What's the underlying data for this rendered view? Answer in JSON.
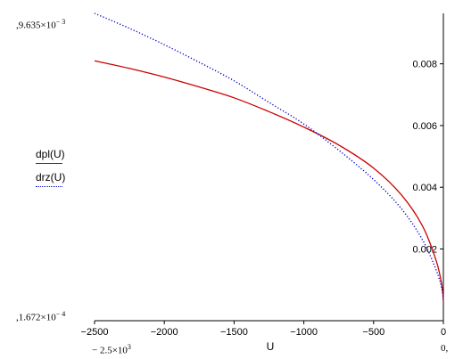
{
  "chart_data": {
    "type": "line",
    "xlabel": "U",
    "ylabel": "",
    "title": "",
    "xlim": [
      -2500,
      0
    ],
    "ylim": [
      0.0001672,
      0.009635
    ],
    "x_ticks": [
      -2500,
      -2000,
      -1500,
      -1000,
      -500,
      0
    ],
    "x_tick_labels": [
      "−2500",
      "−2000",
      "−1500",
      "−1000",
      "−500",
      "0"
    ],
    "y_ticks": [
      0.002,
      0.004,
      0.006,
      0.008
    ],
    "y_tick_labels": [
      "0.002",
      "0.004",
      "0.006",
      "0.008"
    ],
    "grid": false,
    "legend_position": "left-middle",
    "x": [
      -2500,
      -2250,
      -2000,
      -1750,
      -1500,
      -1250,
      -1000,
      -750,
      -500,
      -300,
      -150,
      -50,
      -10,
      0
    ],
    "series": [
      {
        "name": "dpl(U)",
        "color": "#cc0000",
        "style": "solid",
        "values": [
          0.0081,
          0.00785,
          0.00757,
          0.00725,
          0.0069,
          0.00645,
          0.00595,
          0.00537,
          0.00462,
          0.00375,
          0.00275,
          0.0016,
          0.0008,
          0.0003
        ]
      },
      {
        "name": "drz(U)",
        "color": "#0000cc",
        "style": "dotted",
        "values": [
          0.009635,
          0.00915,
          0.00862,
          0.00805,
          0.00745,
          0.00675,
          0.00605,
          0.0052,
          0.00425,
          0.0033,
          0.0023,
          0.0013,
          0.0007,
          0.0003
        ]
      }
    ]
  },
  "limits": {
    "y_max": "9.635×10",
    "y_max_exp": "− 3",
    "y_min": "1.672×10",
    "y_min_exp": "− 4",
    "x_min": "− 2.5×10",
    "x_min_exp": "3",
    "x_max": "0"
  }
}
